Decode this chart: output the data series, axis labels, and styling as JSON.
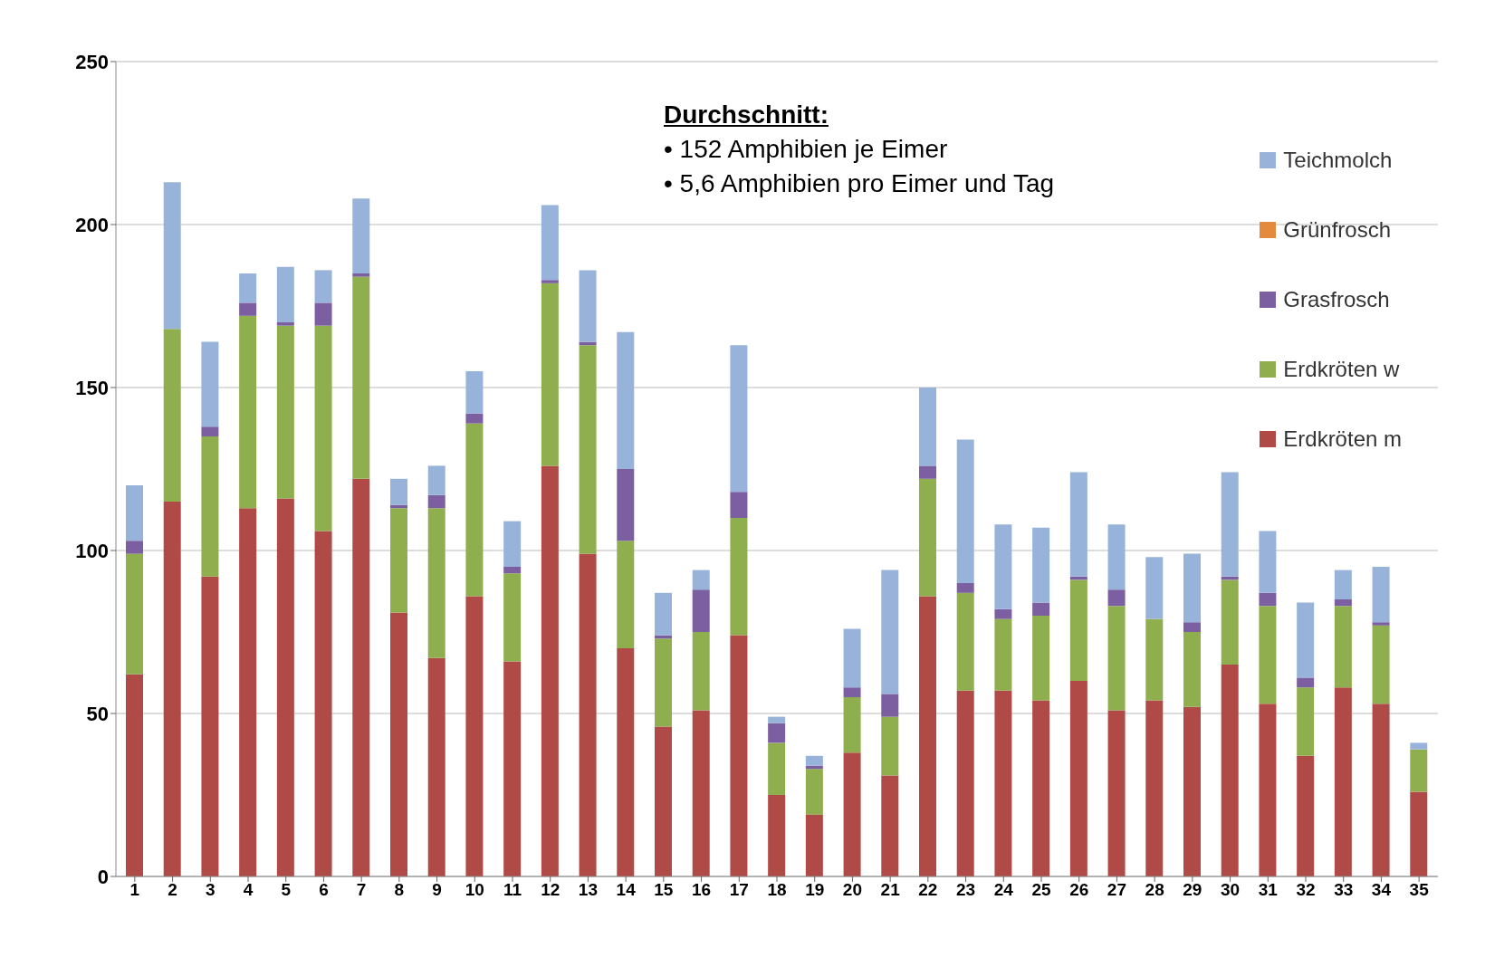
{
  "chart_data": {
    "type": "bar",
    "stacked": true,
    "x": [
      1,
      2,
      3,
      4,
      5,
      6,
      7,
      8,
      9,
      10,
      11,
      12,
      13,
      14,
      15,
      16,
      17,
      18,
      19,
      20,
      21,
      22,
      23,
      24,
      25,
      26,
      27,
      28,
      29,
      30,
      31,
      32,
      33,
      34,
      35
    ],
    "xlim": [
      0.5,
      35.5
    ],
    "xticks": [
      1,
      2,
      3,
      4,
      5,
      6,
      7,
      8,
      9,
      10,
      11,
      12,
      13,
      14,
      15,
      16,
      17,
      18,
      19,
      20,
      21,
      22,
      23,
      24,
      25,
      26,
      27,
      28,
      29,
      30,
      31,
      32,
      33,
      34,
      35
    ],
    "series": [
      {
        "name": "Erdkröten m",
        "color": "#b04a47",
        "values": [
          62,
          115,
          92,
          113,
          116,
          106,
          122,
          81,
          67,
          86,
          66,
          126,
          99,
          70,
          46,
          51,
          74,
          25,
          19,
          38,
          31,
          86,
          57,
          57,
          54,
          60,
          51,
          54,
          52,
          65,
          53,
          37,
          58,
          53,
          26
        ]
      },
      {
        "name": "Erdkröten w",
        "color": "#8fae4e",
        "values": [
          37,
          53,
          43,
          59,
          53,
          63,
          62,
          32,
          46,
          53,
          27,
          56,
          64,
          33,
          27,
          24,
          36,
          16,
          14,
          17,
          18,
          36,
          30,
          22,
          26,
          31,
          32,
          25,
          23,
          26,
          30,
          21,
          25,
          24,
          13
        ]
      },
      {
        "name": "Grasfrosch",
        "color": "#7b5fa0",
        "values": [
          4,
          0,
          3,
          4,
          1,
          7,
          1,
          1,
          4,
          3,
          2,
          1,
          1,
          22,
          1,
          13,
          8,
          6,
          1,
          3,
          7,
          4,
          3,
          3,
          4,
          1,
          5,
          0,
          3,
          1,
          4,
          3,
          2,
          1,
          0
        ]
      },
      {
        "name": "Grünfrosch",
        "color": "#e48a3c",
        "values": [
          0,
          0,
          0,
          0,
          0,
          0,
          0,
          0,
          0,
          0,
          0,
          0,
          0,
          0,
          0,
          0,
          0,
          0,
          0,
          0,
          0,
          0,
          0,
          0,
          0,
          0,
          0,
          0,
          0,
          0,
          0,
          0,
          0,
          0,
          0
        ]
      },
      {
        "name": "Teichmolch",
        "color": "#98b3d9",
        "values": [
          17,
          45,
          26,
          9,
          17,
          10,
          23,
          8,
          9,
          13,
          14,
          23,
          22,
          42,
          13,
          6,
          45,
          2,
          3,
          18,
          38,
          24,
          44,
          26,
          23,
          32,
          20,
          19,
          21,
          32,
          19,
          23,
          9,
          17,
          2
        ]
      }
    ],
    "ylim": [
      0,
      250
    ],
    "yticks": [
      0,
      50,
      100,
      150,
      200,
      250
    ],
    "grid": "y",
    "legend": "right",
    "annotations": [
      "Durchschnitt:",
      "• 152 Amphibien je Eimer",
      "• 5,6 Amphibien pro Eimer und Tag"
    ]
  }
}
